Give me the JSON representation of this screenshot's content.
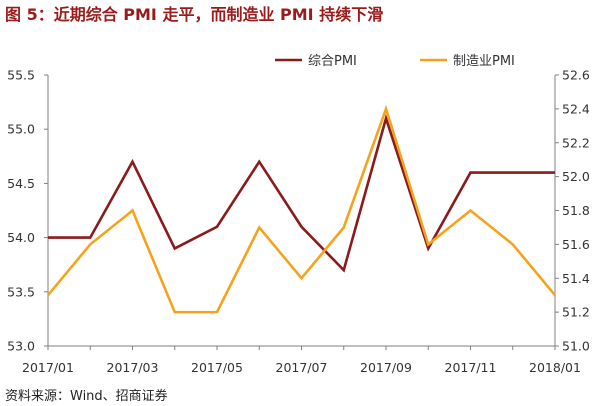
{
  "source": "资料来源：Wind、招商证券",
  "chart_data": {
    "type": "line",
    "title": "图 5：近期综合 PMI 走平，而制造业 PMI 持续下滑",
    "x": [
      "2017/01",
      "2017/02",
      "2017/03",
      "2017/04",
      "2017/05",
      "2017/06",
      "2017/07",
      "2017/08",
      "2017/09",
      "2017/10",
      "2017/11",
      "2017/12",
      "2018/01"
    ],
    "x_tick_labels": [
      "2017/01",
      "2017/03",
      "2017/05",
      "2017/07",
      "2017/09",
      "2017/11",
      "2018/01"
    ],
    "y_left": {
      "range": [
        53.0,
        55.5
      ],
      "ticks": [
        "53.0",
        "53.5",
        "54.0",
        "54.5",
        "55.0",
        "55.5"
      ]
    },
    "y_right": {
      "range": [
        51.0,
        52.6
      ],
      "ticks": [
        "51.0",
        "51.2",
        "51.4",
        "51.6",
        "51.8",
        "52.0",
        "52.2",
        "52.4",
        "52.6"
      ]
    },
    "series": [
      {
        "name": "综合PMI",
        "y_axis": "left",
        "color": "#8b1a1a",
        "values": [
          54.0,
          54.0,
          54.7,
          53.9,
          54.1,
          54.7,
          54.1,
          53.7,
          55.1,
          53.9,
          54.6,
          54.6,
          54.6
        ]
      },
      {
        "name": "制造业PMI",
        "y_axis": "right",
        "color": "#f5a31c",
        "values": [
          51.3,
          51.6,
          51.8,
          51.2,
          51.2,
          51.7,
          51.4,
          51.7,
          52.4,
          51.6,
          51.8,
          51.6,
          51.3
        ]
      }
    ],
    "legend": "top",
    "grid": false
  }
}
